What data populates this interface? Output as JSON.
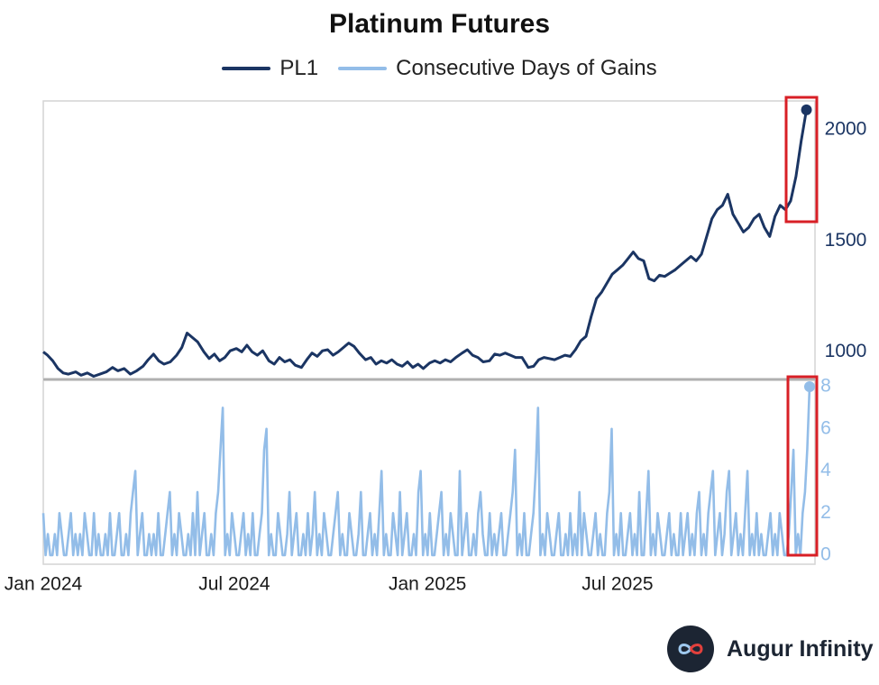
{
  "chart_data": {
    "type": "line",
    "title": "Platinum Futures",
    "legend_position": "top-center",
    "x_ticks": [
      "Jan 2024",
      "Jul 2024",
      "Jan 2025",
      "Jul 2025"
    ],
    "x_range": [
      "2024-01-01",
      "2025-12-31"
    ],
    "panels": [
      {
        "name": "price",
        "y_axis_side": "right",
        "ylim": [
          880,
          2130
        ],
        "y_ticks": [
          1000,
          1500,
          2000
        ],
        "series": [
          {
            "name": "PL1",
            "color": "#1b3563",
            "points": [
              [
                "2024-01-01",
                1000
              ],
              [
                "2024-01-05",
                985
              ],
              [
                "2024-01-10",
                960
              ],
              [
                "2024-01-15",
                925
              ],
              [
                "2024-01-20",
                905
              ],
              [
                "2024-01-25",
                900
              ],
              [
                "2024-02-01",
                910
              ],
              [
                "2024-02-06",
                895
              ],
              [
                "2024-02-12",
                905
              ],
              [
                "2024-02-18",
                890
              ],
              [
                "2024-02-24",
                900
              ],
              [
                "2024-03-01",
                910
              ],
              [
                "2024-03-07",
                930
              ],
              [
                "2024-03-12",
                915
              ],
              [
                "2024-03-18",
                925
              ],
              [
                "2024-03-24",
                900
              ],
              [
                "2024-03-30",
                915
              ],
              [
                "2024-04-05",
                935
              ],
              [
                "2024-04-10",
                965
              ],
              [
                "2024-04-15",
                990
              ],
              [
                "2024-04-20",
                960
              ],
              [
                "2024-04-25",
                945
              ],
              [
                "2024-05-01",
                955
              ],
              [
                "2024-05-07",
                985
              ],
              [
                "2024-05-12",
                1020
              ],
              [
                "2024-05-17",
                1085
              ],
              [
                "2024-05-22",
                1065
              ],
              [
                "2024-05-27",
                1045
              ],
              [
                "2024-06-02",
                1000
              ],
              [
                "2024-06-07",
                970
              ],
              [
                "2024-06-12",
                990
              ],
              [
                "2024-06-17",
                960
              ],
              [
                "2024-06-22",
                975
              ],
              [
                "2024-06-27",
                1005
              ],
              [
                "2024-07-03",
                1015
              ],
              [
                "2024-07-08",
                1000
              ],
              [
                "2024-07-13",
                1030
              ],
              [
                "2024-07-18",
                1000
              ],
              [
                "2024-07-23",
                985
              ],
              [
                "2024-07-28",
                1005
              ],
              [
                "2024-08-03",
                960
              ],
              [
                "2024-08-08",
                945
              ],
              [
                "2024-08-13",
                975
              ],
              [
                "2024-08-18",
                955
              ],
              [
                "2024-08-23",
                965
              ],
              [
                "2024-08-28",
                940
              ],
              [
                "2024-09-03",
                930
              ],
              [
                "2024-09-08",
                965
              ],
              [
                "2024-09-13",
                995
              ],
              [
                "2024-09-18",
                980
              ],
              [
                "2024-09-23",
                1005
              ],
              [
                "2024-09-28",
                1010
              ],
              [
                "2024-10-03",
                985
              ],
              [
                "2024-10-08",
                1000
              ],
              [
                "2024-10-13",
                1020
              ],
              [
                "2024-10-18",
                1040
              ],
              [
                "2024-10-23",
                1025
              ],
              [
                "2024-10-28",
                995
              ],
              [
                "2024-11-03",
                965
              ],
              [
                "2024-11-08",
                975
              ],
              [
                "2024-11-13",
                945
              ],
              [
                "2024-11-18",
                960
              ],
              [
                "2024-11-23",
                950
              ],
              [
                "2024-11-28",
                965
              ],
              [
                "2024-12-03",
                945
              ],
              [
                "2024-12-08",
                935
              ],
              [
                "2024-12-13",
                955
              ],
              [
                "2024-12-18",
                930
              ],
              [
                "2024-12-23",
                945
              ],
              [
                "2024-12-28",
                925
              ],
              [
                "2025-01-03",
                950
              ],
              [
                "2025-01-08",
                960
              ],
              [
                "2025-01-13",
                950
              ],
              [
                "2025-01-18",
                965
              ],
              [
                "2025-01-23",
                955
              ],
              [
                "2025-01-28",
                975
              ],
              [
                "2025-02-03",
                995
              ],
              [
                "2025-02-08",
                1010
              ],
              [
                "2025-02-13",
                985
              ],
              [
                "2025-02-18",
                975
              ],
              [
                "2025-02-23",
                955
              ],
              [
                "2025-03-01",
                960
              ],
              [
                "2025-03-06",
                990
              ],
              [
                "2025-03-11",
                985
              ],
              [
                "2025-03-16",
                995
              ],
              [
                "2025-03-21",
                985
              ],
              [
                "2025-03-26",
                975
              ],
              [
                "2025-04-01",
                975
              ],
              [
                "2025-04-07",
                930
              ],
              [
                "2025-04-12",
                935
              ],
              [
                "2025-04-17",
                965
              ],
              [
                "2025-04-22",
                975
              ],
              [
                "2025-04-27",
                970
              ],
              [
                "2025-05-02",
                965
              ],
              [
                "2025-05-07",
                975
              ],
              [
                "2025-05-12",
                985
              ],
              [
                "2025-05-17",
                980
              ],
              [
                "2025-05-22",
                1010
              ],
              [
                "2025-05-27",
                1050
              ],
              [
                "2025-06-01",
                1070
              ],
              [
                "2025-06-06",
                1160
              ],
              [
                "2025-06-11",
                1240
              ],
              [
                "2025-06-16",
                1270
              ],
              [
                "2025-06-21",
                1310
              ],
              [
                "2025-06-26",
                1350
              ],
              [
                "2025-07-01",
                1370
              ],
              [
                "2025-07-06",
                1390
              ],
              [
                "2025-07-11",
                1420
              ],
              [
                "2025-07-16",
                1450
              ],
              [
                "2025-07-21",
                1420
              ],
              [
                "2025-07-26",
                1410
              ],
              [
                "2025-07-31",
                1330
              ],
              [
                "2025-08-05",
                1320
              ],
              [
                "2025-08-10",
                1345
              ],
              [
                "2025-08-15",
                1340
              ],
              [
                "2025-08-20",
                1355
              ],
              [
                "2025-08-25",
                1370
              ],
              [
                "2025-08-30",
                1390
              ],
              [
                "2025-09-04",
                1410
              ],
              [
                "2025-09-09",
                1430
              ],
              [
                "2025-09-14",
                1410
              ],
              [
                "2025-09-19",
                1440
              ],
              [
                "2025-09-24",
                1520
              ],
              [
                "2025-09-29",
                1600
              ],
              [
                "2025-10-04",
                1640
              ],
              [
                "2025-10-09",
                1660
              ],
              [
                "2025-10-14",
                1710
              ],
              [
                "2025-10-19",
                1620
              ],
              [
                "2025-10-24",
                1580
              ],
              [
                "2025-10-29",
                1540
              ],
              [
                "2025-11-03",
                1560
              ],
              [
                "2025-11-08",
                1600
              ],
              [
                "2025-11-13",
                1620
              ],
              [
                "2025-11-18",
                1560
              ],
              [
                "2025-11-23",
                1520
              ],
              [
                "2025-11-28",
                1610
              ],
              [
                "2025-12-03",
                1660
              ],
              [
                "2025-12-08",
                1640
              ],
              [
                "2025-12-13",
                1680
              ],
              [
                "2025-12-18",
                1790
              ],
              [
                "2025-12-23",
                1950
              ],
              [
                "2025-12-28",
                2090
              ]
            ]
          }
        ]
      },
      {
        "name": "gains",
        "y_axis_side": "right",
        "ylim": [
          0,
          8.3
        ],
        "y_ticks": [
          0,
          2,
          4,
          6,
          8
        ],
        "series": [
          {
            "name": "Consecutive Days of Gains",
            "color": "#93bde8",
            "values": [
              2,
              0,
              1,
              0,
              0,
              1,
              0,
              2,
              1,
              0,
              0,
              1,
              2,
              0,
              1,
              0,
              1,
              0,
              2,
              1,
              0,
              0,
              2,
              0,
              1,
              0,
              0,
              1,
              0,
              2,
              0,
              0,
              1,
              2,
              0,
              0,
              1,
              0,
              2,
              3,
              4,
              0,
              1,
              2,
              0,
              0,
              1,
              0,
              1,
              0,
              2,
              0,
              0,
              1,
              2,
              3,
              0,
              1,
              0,
              2,
              1,
              0,
              0,
              1,
              0,
              2,
              0,
              3,
              0,
              1,
              2,
              0,
              0,
              1,
              0,
              2,
              3,
              5,
              7,
              0,
              1,
              0,
              2,
              1,
              0,
              0,
              1,
              2,
              0,
              1,
              0,
              2,
              0,
              0,
              1,
              2,
              5,
              6,
              0,
              1,
              0,
              0,
              2,
              1,
              0,
              0,
              1,
              3,
              0,
              1,
              2,
              0,
              0,
              1,
              0,
              2,
              0,
              1,
              3,
              0,
              1,
              0,
              2,
              1,
              0,
              0,
              1,
              2,
              3,
              0,
              1,
              0,
              0,
              2,
              1,
              0,
              0,
              1,
              3,
              0,
              0,
              1,
              2,
              0,
              1,
              0,
              2,
              4,
              0,
              1,
              0,
              0,
              2,
              1,
              0,
              3,
              0,
              1,
              2,
              0,
              0,
              1,
              0,
              3,
              4,
              0,
              1,
              0,
              2,
              0,
              0,
              1,
              2,
              3,
              0,
              1,
              0,
              2,
              1,
              0,
              0,
              4,
              0,
              1,
              2,
              0,
              0,
              1,
              0,
              2,
              3,
              1,
              0,
              0,
              2,
              0,
              1,
              0,
              1,
              2,
              0,
              0,
              1,
              2,
              3,
              5,
              0,
              1,
              0,
              2,
              0,
              0,
              1,
              2,
              4,
              7,
              0,
              1,
              0,
              2,
              1,
              0,
              0,
              1,
              2,
              0,
              0,
              1,
              0,
              2,
              0,
              1,
              0,
              3,
              0,
              2,
              1,
              0,
              0,
              1,
              2,
              0,
              1,
              0,
              0,
              2,
              3,
              6,
              0,
              1,
              0,
              2,
              0,
              0,
              1,
              2,
              0,
              1,
              0,
              3,
              0,
              0,
              2,
              4,
              0,
              1,
              0,
              2,
              1,
              0,
              0,
              1,
              2,
              0,
              1,
              0,
              0,
              2,
              0,
              1,
              2,
              0,
              1,
              0,
              2,
              3,
              0,
              1,
              0,
              2,
              3,
              4,
              0,
              1,
              2,
              0,
              1,
              3,
              4,
              0,
              1,
              2,
              0,
              1,
              0,
              2,
              4,
              0,
              1,
              0,
              2,
              0,
              1,
              0,
              0,
              1,
              2,
              0,
              1,
              0,
              2,
              1,
              0,
              0,
              1,
              3,
              5,
              0,
              1,
              0,
              2,
              3,
              5,
              8
            ]
          }
        ]
      }
    ]
  },
  "brand": {
    "name": "Augur Infinity"
  }
}
